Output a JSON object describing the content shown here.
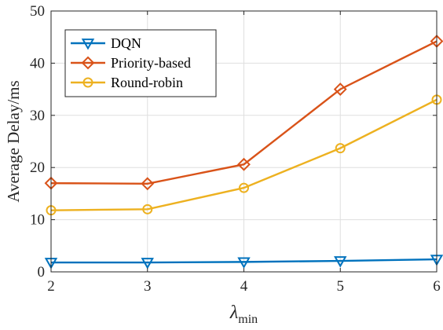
{
  "chart_data": {
    "type": "line",
    "x": [
      2,
      3,
      4,
      5,
      6
    ],
    "xlim": [
      2,
      6
    ],
    "ylim": [
      0,
      50
    ],
    "xticks": [
      "2",
      "3",
      "4",
      "5",
      "6"
    ],
    "yticks": [
      "0",
      "10",
      "20",
      "30",
      "40",
      "50"
    ],
    "xlabel": "λ",
    "xlabel_sub": "min",
    "ylabel": "Average Delay/ms",
    "grid": true,
    "legend_position": "top-left",
    "series": [
      {
        "name": "DQN",
        "marker": "triangle-down",
        "color": "#0072BD",
        "values": [
          1.8,
          1.8,
          1.9,
          2.1,
          2.4
        ]
      },
      {
        "name": "Priority-based",
        "marker": "diamond",
        "color": "#D95319",
        "values": [
          17.0,
          16.9,
          20.6,
          35.0,
          44.2
        ]
      },
      {
        "name": "Round-robin",
        "marker": "circle",
        "color": "#EDB120",
        "values": [
          11.8,
          12.0,
          16.1,
          23.7,
          33.0
        ]
      }
    ]
  }
}
